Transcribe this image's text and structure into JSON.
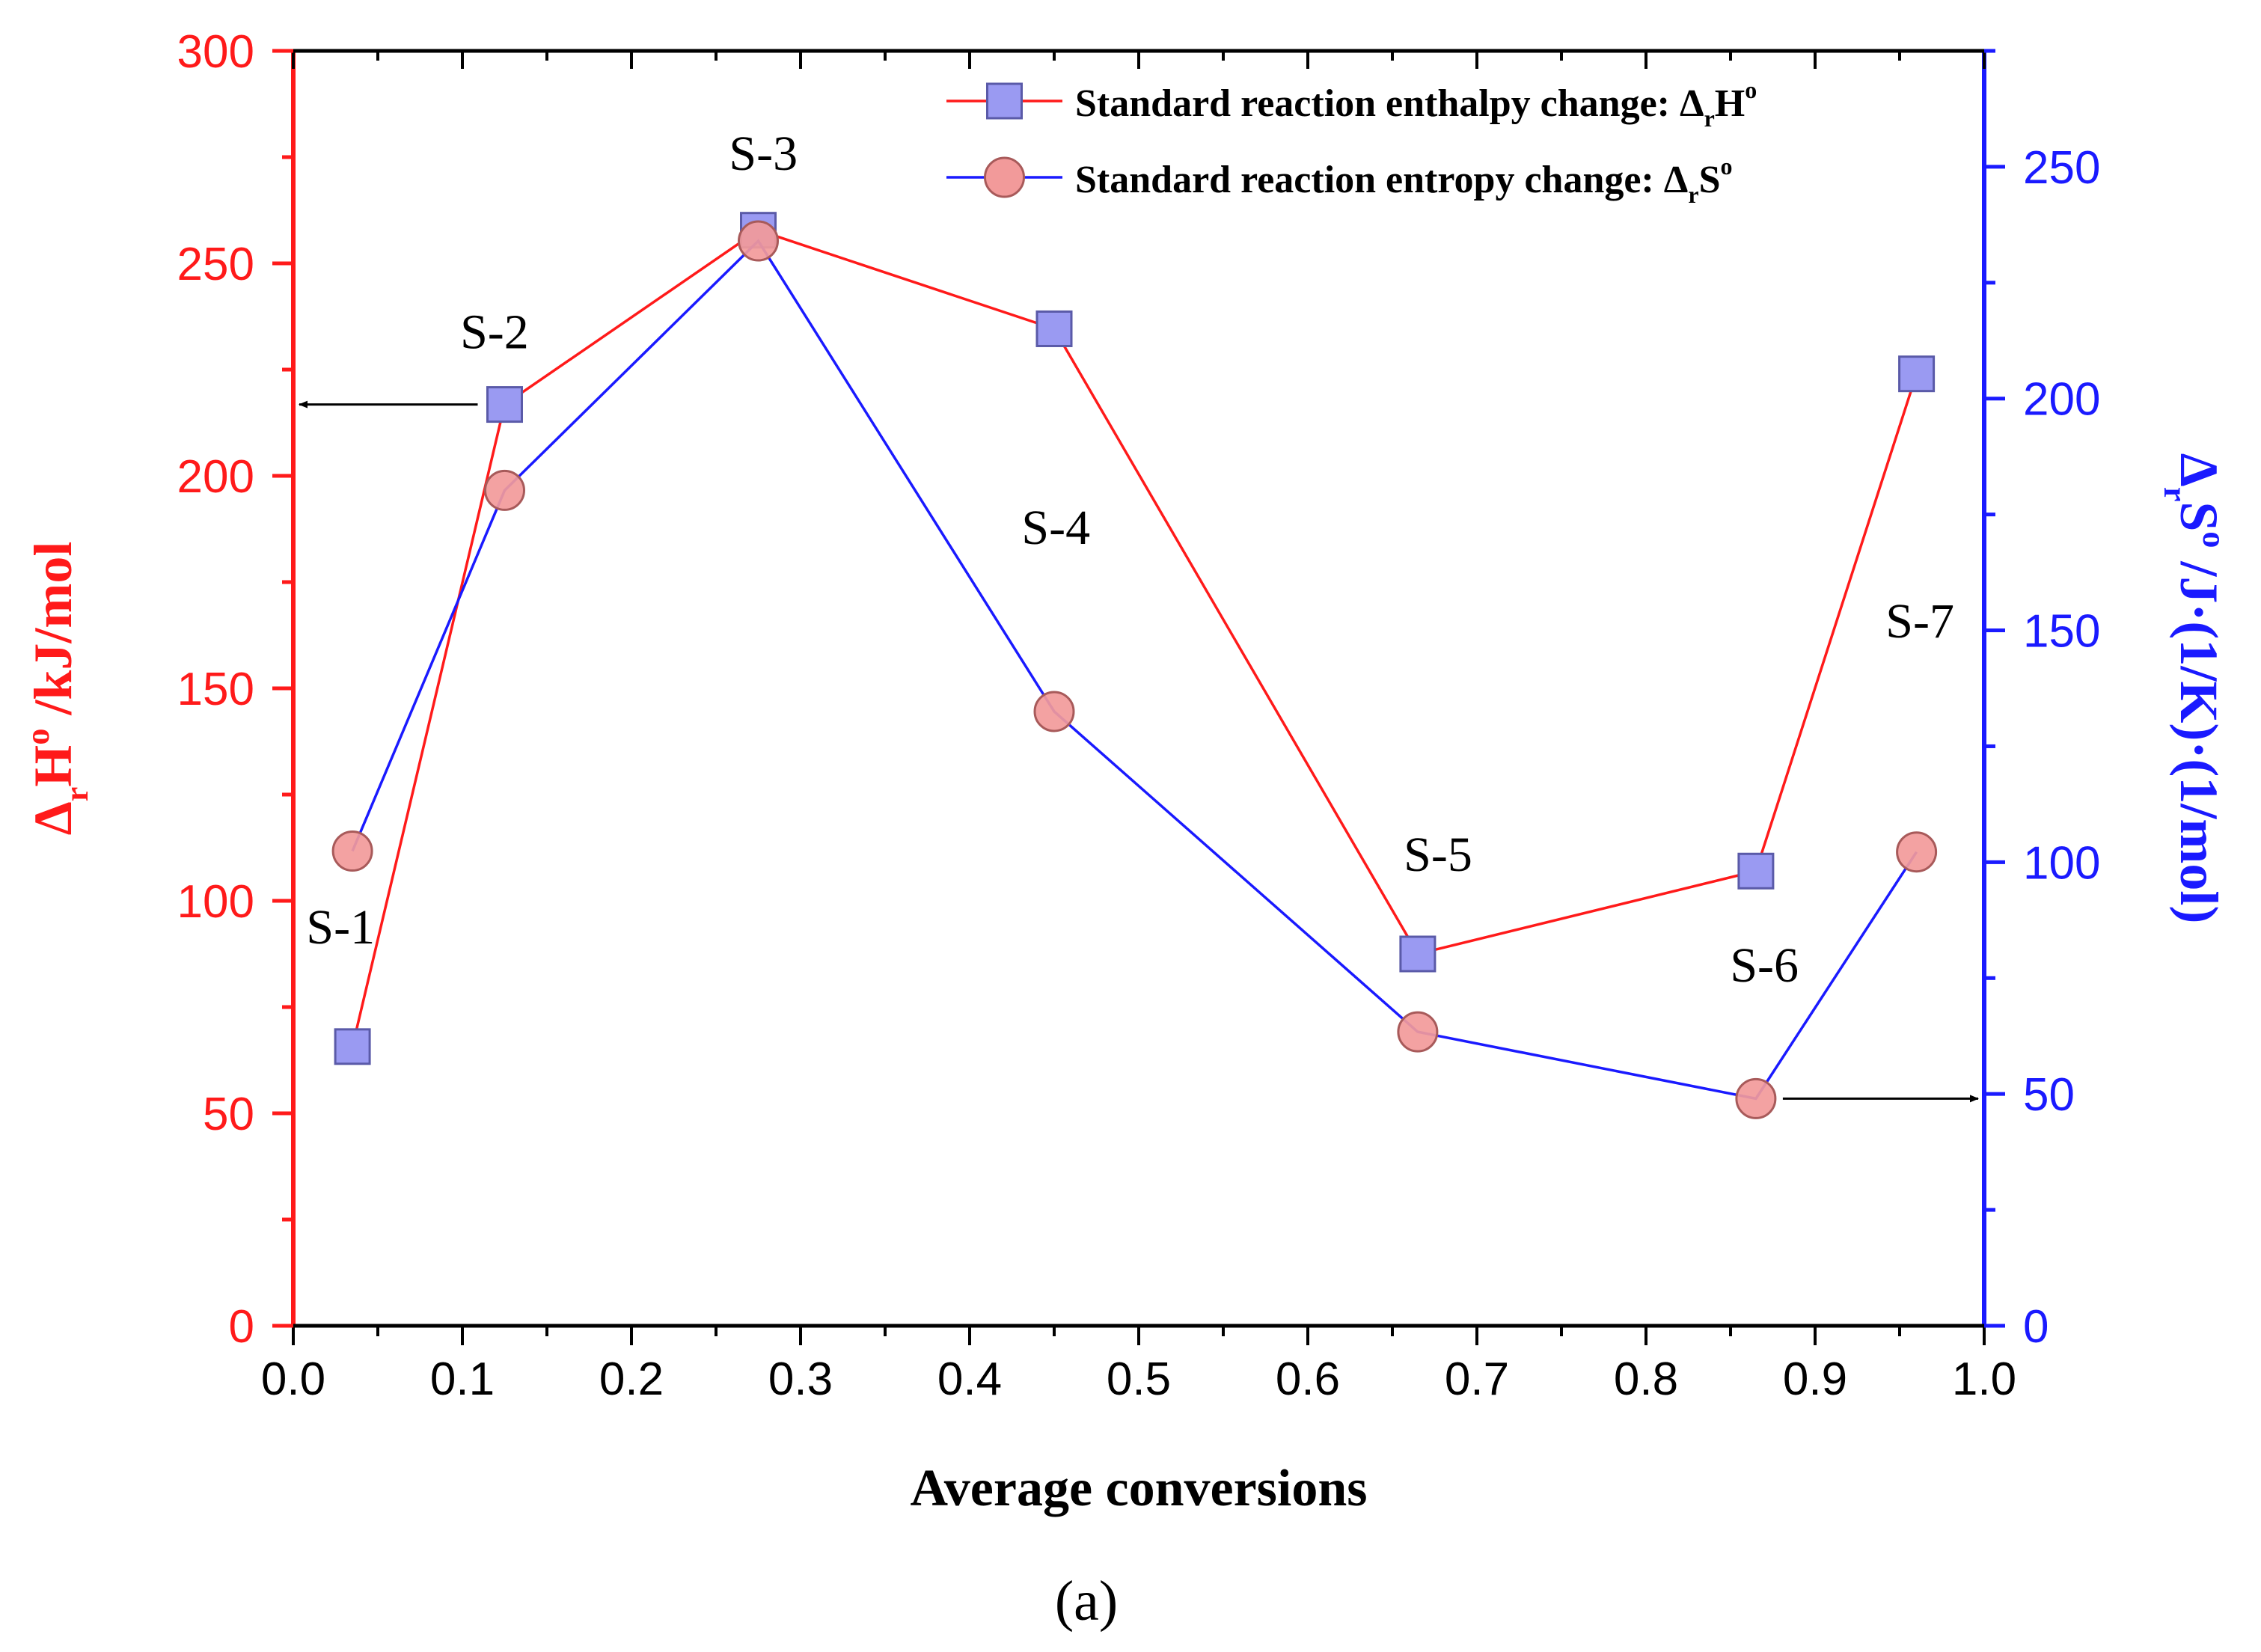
{
  "chart_data": {
    "type": "line",
    "title": "",
    "caption": "(a)",
    "xlabel": "Average conversions",
    "ylabel_left": {
      "symbol": "Δ",
      "sub": "r",
      "main": "H",
      "sup": "o",
      "rest": " /kJ/mol"
    },
    "ylabel_right": {
      "symbol": "Δ",
      "sub": "r",
      "main": "S",
      "sup": "o",
      "rest": " /J·(1/K)·(1/mol)"
    },
    "xlim": [
      0.0,
      1.0
    ],
    "ylim_left": [
      0,
      300
    ],
    "ylim_right": [
      0,
      275
    ],
    "x_ticks": [
      "0.0",
      "0.1",
      "0.2",
      "0.3",
      "0.4",
      "0.5",
      "0.6",
      "0.7",
      "0.8",
      "0.9",
      "1.0"
    ],
    "y_left_ticks": [
      "0",
      "50",
      "100",
      "150",
      "200",
      "250",
      "300"
    ],
    "y_right_ticks": [
      "0",
      "50",
      "100",
      "150",
      "200",
      "250"
    ],
    "series": [
      {
        "name": "Standard reaction enthalpy change",
        "legend_prefix": "Standard reaction enthalpy change: ",
        "legend_symbol": {
          "symbol": "Δ",
          "sub": "r",
          "main": "H",
          "sup": "o"
        },
        "axis": "left",
        "marker": "square",
        "line_color": "#ff1a1a",
        "marker_fill": "#9a9af2",
        "marker_edge": "#5a5aa8",
        "x": [
          0.035,
          0.125,
          0.275,
          0.45,
          0.665,
          0.865,
          0.96
        ],
        "y": [
          65.7,
          216.8,
          257.8,
          234.6,
          87.5,
          107.0,
          224.0
        ]
      },
      {
        "name": "Standard reaction entropy change",
        "legend_prefix": "Standard reaction entropy change: ",
        "legend_symbol": {
          "symbol": "Δ",
          "sub": "r",
          "main": "S",
          "sup": "o"
        },
        "axis": "right",
        "marker": "circle",
        "line_color": "#1a1aff",
        "marker_fill": "#f29a9a",
        "marker_edge": "#a85a5a",
        "x": [
          0.035,
          0.125,
          0.275,
          0.45,
          0.665,
          0.865,
          0.96
        ],
        "y": [
          102.4,
          180.2,
          234.0,
          132.5,
          63.4,
          49.0,
          102.2
        ]
      }
    ],
    "point_labels": [
      {
        "text": "S-1",
        "x": 0.028,
        "y_left": 90
      },
      {
        "text": "S-2",
        "x": 0.119,
        "y_left": 230
      },
      {
        "text": "S-3",
        "x": 0.278,
        "y_left": 272
      },
      {
        "text": "S-4",
        "x": 0.451,
        "y_left": 184
      },
      {
        "text": "S-5",
        "x": 0.677,
        "y_left": 107
      },
      {
        "text": "S-6",
        "x": 0.87,
        "y_left": 81
      },
      {
        "text": "S-7",
        "x": 0.962,
        "y_left": 162
      }
    ],
    "arrows": [
      {
        "axis": "left",
        "y": 216.8,
        "from_x": 0.125,
        "to_x": 0.0
      },
      {
        "axis": "right",
        "y": 49.0,
        "from_x": 0.865,
        "to_x": 1.0
      }
    ],
    "colors": {
      "left_axis": "#ff1a1a",
      "right_axis": "#1a1aff",
      "text": "#000000"
    },
    "legend_position": "top-right"
  }
}
